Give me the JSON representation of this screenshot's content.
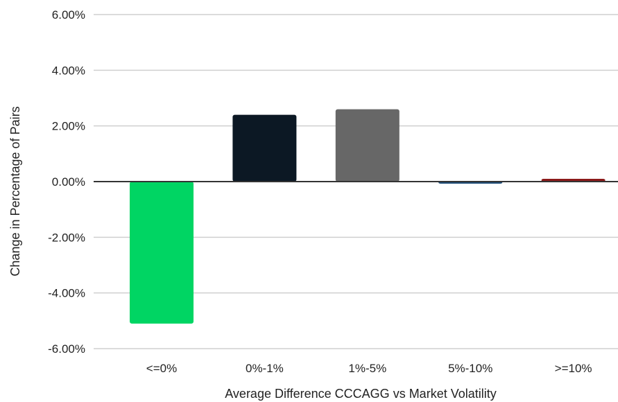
{
  "chart_data": {
    "type": "bar",
    "title": "",
    "xlabel": "Average Difference CCCAGG vs Market Volatility",
    "ylabel": "Change in Percentage of Pairs",
    "categories": [
      "<=0%",
      "0%-1%",
      "1%-5%",
      "5%-10%",
      ">=10%"
    ],
    "values": [
      -5.1,
      2.4,
      2.6,
      -0.05,
      0.1
    ],
    "colors": [
      "#00d563",
      "#0c1824",
      "#676767",
      "#1f4e79",
      "#8b1a1a"
    ],
    "ylim": [
      -6,
      6
    ],
    "yticks": [
      {
        "value": 6,
        "label": "6.00%"
      },
      {
        "value": 4,
        "label": "4.00%"
      },
      {
        "value": 2,
        "label": "2.00%"
      },
      {
        "value": 0,
        "label": "0.00%"
      },
      {
        "value": -2,
        "label": "-2.00%"
      },
      {
        "value": -4,
        "label": "-4.00%"
      },
      {
        "value": -6,
        "label": "-6.00%"
      }
    ],
    "grid": true,
    "legend": "none"
  }
}
